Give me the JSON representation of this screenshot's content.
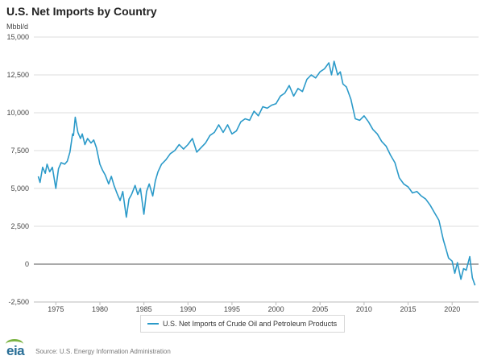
{
  "chart_data": {
    "type": "line",
    "title": "U.S. Net Imports by Country",
    "ylabel": "Mbbl/d",
    "xlabel": "",
    "ylim": [
      -2500,
      15000
    ],
    "xlim": [
      1972.5,
      2023.0
    ],
    "yticks": [
      -2500,
      0,
      2500,
      5000,
      7500,
      10000,
      12500,
      15000
    ],
    "ytick_labels": [
      "-2,500",
      "0",
      "2,500",
      "5,000",
      "7,500",
      "10,000",
      "12,500",
      "15,000"
    ],
    "xticks": [
      1975,
      1980,
      1985,
      1990,
      1995,
      2000,
      2005,
      2010,
      2015,
      2020
    ],
    "xtick_labels": [
      "1975",
      "1980",
      "1985",
      "1990",
      "1995",
      "2000",
      "2005",
      "2010",
      "2015",
      "2020"
    ],
    "grid": true,
    "legend_position": "bottom-center",
    "series": [
      {
        "name": "U.S. Net Imports of Crude Oil and Petroleum Products",
        "color": "#2b9ac9",
        "x": [
          1973.0,
          1973.2,
          1973.5,
          1973.8,
          1974.0,
          1974.3,
          1974.6,
          1975.0,
          1975.3,
          1975.6,
          1976.0,
          1976.3,
          1976.6,
          1976.9,
          1977.0,
          1977.2,
          1977.5,
          1977.8,
          1978.0,
          1978.3,
          1978.6,
          1979.0,
          1979.3,
          1979.6,
          1980.0,
          1980.3,
          1980.6,
          1981.0,
          1981.3,
          1981.6,
          1982.0,
          1982.3,
          1982.6,
          1983.0,
          1983.3,
          1983.6,
          1984.0,
          1984.3,
          1984.6,
          1985.0,
          1985.3,
          1985.6,
          1986.0,
          1986.3,
          1986.6,
          1987.0,
          1987.5,
          1988.0,
          1988.5,
          1989.0,
          1989.5,
          1990.0,
          1990.5,
          1991.0,
          1991.5,
          1992.0,
          1992.5,
          1993.0,
          1993.5,
          1994.0,
          1994.5,
          1995.0,
          1995.5,
          1996.0,
          1996.5,
          1997.0,
          1997.5,
          1998.0,
          1998.5,
          1999.0,
          1999.5,
          2000.0,
          2000.5,
          2001.0,
          2001.5,
          2002.0,
          2002.5,
          2003.0,
          2003.5,
          2004.0,
          2004.5,
          2005.0,
          2005.5,
          2006.0,
          2006.3,
          2006.6,
          2007.0,
          2007.3,
          2007.6,
          2008.0,
          2008.5,
          2009.0,
          2009.5,
          2010.0,
          2010.5,
          2011.0,
          2011.5,
          2012.0,
          2012.5,
          2013.0,
          2013.5,
          2014.0,
          2014.5,
          2015.0,
          2015.5,
          2016.0,
          2016.5,
          2017.0,
          2017.5,
          2018.0,
          2018.5,
          2019.0,
          2019.3,
          2019.6,
          2020.0,
          2020.3,
          2020.6,
          2021.0,
          2021.3,
          2021.6,
          2022.0,
          2022.3,
          2022.6
        ],
        "values": [
          5800,
          5400,
          6400,
          6000,
          6600,
          6100,
          6400,
          5000,
          6300,
          6700,
          6600,
          6800,
          7400,
          8600,
          8500,
          9700,
          8700,
          8300,
          8600,
          7900,
          8300,
          8000,
          8200,
          7700,
          6600,
          6200,
          5900,
          5300,
          5800,
          5200,
          4600,
          4200,
          4800,
          3100,
          4300,
          4600,
          5200,
          4600,
          5000,
          3300,
          4800,
          5300,
          4500,
          5500,
          6100,
          6600,
          6900,
          7300,
          7500,
          7900,
          7600,
          7900,
          8300,
          7400,
          7700,
          8000,
          8500,
          8700,
          9200,
          8700,
          9200,
          8600,
          8800,
          9400,
          9600,
          9500,
          10100,
          9800,
          10400,
          10300,
          10500,
          10600,
          11100,
          11300,
          11800,
          11100,
          11600,
          11400,
          12200,
          12500,
          12300,
          12700,
          12900,
          13300,
          12500,
          13400,
          12500,
          12700,
          11900,
          11700,
          10900,
          9600,
          9500,
          9800,
          9400,
          8900,
          8600,
          8100,
          7800,
          7200,
          6700,
          5700,
          5300,
          5100,
          4700,
          4800,
          4500,
          4300,
          3900,
          3400,
          2900,
          1600,
          1000,
          400,
          200,
          -600,
          100,
          -1000,
          -300,
          -400,
          500,
          -900,
          -1400
        ]
      }
    ]
  },
  "footer": {
    "logo": "eia",
    "source": "Source: U.S. Energy Information Administration"
  }
}
